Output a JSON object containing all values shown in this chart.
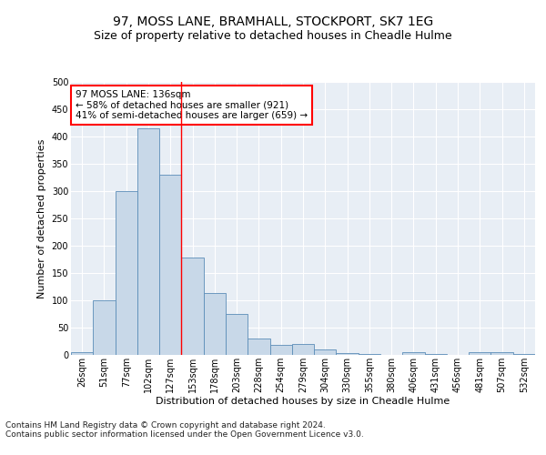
{
  "title": "97, MOSS LANE, BRAMHALL, STOCKPORT, SK7 1EG",
  "subtitle": "Size of property relative to detached houses in Cheadle Hulme",
  "xlabel": "Distribution of detached houses by size in Cheadle Hulme",
  "ylabel": "Number of detached properties",
  "bar_labels": [
    "26sqm",
    "51sqm",
    "77sqm",
    "102sqm",
    "127sqm",
    "153sqm",
    "178sqm",
    "203sqm",
    "228sqm",
    "254sqm",
    "279sqm",
    "304sqm",
    "330sqm",
    "355sqm",
    "380sqm",
    "406sqm",
    "431sqm",
    "456sqm",
    "481sqm",
    "507sqm",
    "532sqm"
  ],
  "bar_values": [
    5,
    100,
    300,
    415,
    330,
    178,
    113,
    75,
    30,
    18,
    20,
    10,
    3,
    2,
    0,
    5,
    1,
    0,
    5,
    5,
    2
  ],
  "bar_color": "#c8d8e8",
  "bar_edge_color": "#5b8db8",
  "annotation_text": "97 MOSS LANE: 136sqm\n← 58% of detached houses are smaller (921)\n41% of semi-detached houses are larger (659) →",
  "annotation_box_color": "white",
  "annotation_box_edge_color": "red",
  "ylim": [
    0,
    500
  ],
  "yticks": [
    0,
    50,
    100,
    150,
    200,
    250,
    300,
    350,
    400,
    450,
    500
  ],
  "background_color": "#e8eef5",
  "grid_color": "white",
  "footer_line1": "Contains HM Land Registry data © Crown copyright and database right 2024.",
  "footer_line2": "Contains public sector information licensed under the Open Government Licence v3.0.",
  "title_fontsize": 10,
  "subtitle_fontsize": 9,
  "xlabel_fontsize": 8,
  "ylabel_fontsize": 8,
  "tick_fontsize": 7,
  "footer_fontsize": 6.5,
  "annotation_fontsize": 7.5,
  "red_line_x": 4.5
}
